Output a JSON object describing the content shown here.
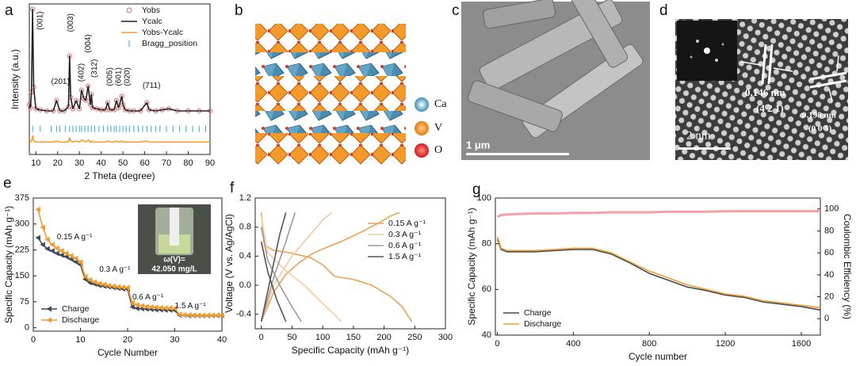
{
  "chart_data": [
    {
      "label": "a",
      "type": "line",
      "xlabel": "2 Theta (degree)",
      "ylabel": "Intensity (a.u.)",
      "xlim": [
        7,
        90
      ],
      "xticks": [
        10,
        20,
        30,
        40,
        50,
        60,
        70,
        80,
        90
      ],
      "ylim": [
        -40,
        105
      ],
      "legend": "upper-right",
      "x": [
        7,
        7.5,
        8,
        8.5,
        9,
        10,
        12,
        15,
        18,
        19.5,
        21,
        23,
        25,
        25.5,
        26,
        27,
        28.5,
        30,
        31,
        32,
        33,
        34,
        35,
        35.5,
        36,
        38,
        40,
        42,
        43,
        44,
        46,
        47,
        48,
        49.5,
        50,
        51,
        53,
        55,
        58,
        61,
        62,
        65,
        68,
        71,
        75,
        80,
        85,
        90
      ],
      "series": [
        {
          "name": "Yobs",
          "color": "#e06a6a",
          "style": "circles",
          "values": [
            8,
            5,
            20,
            100,
            25,
            4,
            3,
            2,
            2,
            12,
            2,
            2,
            6,
            55,
            15,
            4,
            12,
            4,
            22,
            14,
            12,
            26,
            8,
            18,
            5,
            4,
            3,
            3,
            10,
            3,
            3,
            12,
            5,
            16,
            8,
            3,
            2,
            2,
            2,
            10,
            3,
            2,
            3,
            4,
            2,
            2,
            2,
            2
          ]
        },
        {
          "name": "Ycalc",
          "color": "#222222",
          "style": "line",
          "values": [
            8,
            5,
            20,
            100,
            25,
            4,
            3,
            2,
            2,
            12,
            2,
            2,
            6,
            55,
            15,
            4,
            12,
            4,
            22,
            14,
            12,
            26,
            8,
            18,
            5,
            4,
            3,
            3,
            10,
            3,
            3,
            12,
            5,
            16,
            8,
            3,
            2,
            2,
            2,
            10,
            3,
            2,
            3,
            4,
            2,
            2,
            2,
            2
          ]
        },
        {
          "name": "Yobs-Ycalc",
          "color": "#f0a030",
          "style": "line",
          "values": [
            -28,
            -28,
            -27,
            -22,
            -27,
            -28,
            -28,
            -28,
            -28,
            -27,
            -28,
            -28,
            -28,
            -24,
            -27,
            -28,
            -27,
            -28,
            -26,
            -27,
            -28,
            -26,
            -28,
            -27,
            -28,
            -28,
            -28,
            -28,
            -27,
            -28,
            -28,
            -27,
            -28,
            -27,
            -28,
            -28,
            -28,
            -28,
            -28,
            -27,
            -28,
            -28,
            -28,
            -28,
            -28,
            -28,
            -28,
            -28
          ]
        },
        {
          "name": "Bragg_position",
          "color": "#2aa8e0",
          "style": "ticks",
          "x": [
            8.5,
            12,
            17,
            19.5,
            21,
            23.5,
            25.5,
            27,
            28.5,
            30,
            31,
            32.5,
            34,
            35.5,
            37,
            39,
            41,
            43,
            44.5,
            46,
            47,
            48.5,
            50,
            51.5,
            53,
            55,
            57,
            59,
            61,
            63,
            65,
            67,
            70,
            73,
            76,
            79,
            82,
            85,
            88
          ]
        }
      ],
      "annotations": [
        {
          "text": "(001)",
          "x": 12,
          "y": 80,
          "rotation": -90
        },
        {
          "text": "(201)",
          "x": 17,
          "y": 30
        },
        {
          "text": "(003)",
          "x": 26,
          "y": 78,
          "rotation": -90
        },
        {
          "text": "(004)",
          "x": 34,
          "y": 58,
          "rotation": -90
        },
        {
          "text": "(402)",
          "x": 31,
          "y": 30,
          "rotation": -90
        },
        {
          "text": "(312)",
          "x": 37,
          "y": 34,
          "rotation": -90
        },
        {
          "text": "(005)",
          "x": 44,
          "y": 26,
          "rotation": -90
        },
        {
          "text": "(601)",
          "x": 48,
          "y": 26,
          "rotation": -90
        },
        {
          "text": "(020)",
          "x": 52,
          "y": 26,
          "rotation": -90
        },
        {
          "text": "(711)",
          "x": 59,
          "y": 26
        }
      ]
    },
    {
      "label": "e",
      "type": "line",
      "xlabel": "Cycle Number",
      "ylabel": "Specific Capacity (mAh g⁻¹)",
      "xlim": [
        0,
        40
      ],
      "xticks": [
        0,
        10,
        20,
        30,
        40
      ],
      "ylim": [
        -10,
        375
      ],
      "yticks": [
        0,
        75,
        150,
        225,
        300,
        375
      ],
      "legend": "lower-left",
      "x": [
        1,
        2,
        3,
        4,
        5,
        6,
        7,
        8,
        9,
        10,
        11,
        12,
        13,
        14,
        15,
        16,
        17,
        18,
        19,
        20,
        21,
        22,
        23,
        24,
        25,
        26,
        27,
        28,
        29,
        30,
        31,
        32,
        33,
        34,
        35,
        36,
        37,
        38,
        39,
        40
      ],
      "series": [
        {
          "name": "Charge",
          "color": "#3d4a57",
          "style": "line",
          "marker": "triangle",
          "values": [
            260,
            240,
            228,
            222,
            215,
            210,
            205,
            198,
            190,
            182,
            140,
            130,
            126,
            122,
            120,
            118,
            116,
            114,
            112,
            111,
            60,
            56,
            55,
            54,
            53,
            52,
            52,
            51,
            51,
            50,
            36,
            36,
            35,
            35,
            35,
            35,
            35,
            35,
            35,
            35
          ]
        },
        {
          "name": "Discharge",
          "color": "#f39a2b",
          "style": "line",
          "marker": "triangle",
          "values": [
            342,
            290,
            255,
            240,
            230,
            222,
            215,
            208,
            200,
            190,
            148,
            138,
            132,
            128,
            125,
            122,
            120,
            118,
            117,
            116,
            72,
            66,
            63,
            61,
            60,
            59,
            58,
            57,
            57,
            56,
            38,
            37,
            37,
            36,
            36,
            36,
            36,
            36,
            36,
            36
          ]
        }
      ],
      "annotations": [
        {
          "text": "0.15 A g⁻¹",
          "x": 5,
          "y": 262
        },
        {
          "text": "0.3 A g⁻¹",
          "x": 14,
          "y": 168
        },
        {
          "text": "0.6 A g⁻¹",
          "x": 21,
          "y": 88
        },
        {
          "text": "1.5 A g⁻¹",
          "x": 30,
          "y": 62
        }
      ],
      "inset_text": [
        "ω(V)=",
        "42.050 mg/L"
      ]
    },
    {
      "label": "f",
      "type": "line",
      "xlabel": "Specific Capacity (mAh g⁻¹)",
      "ylabel": "Voltage (V vs. Ag/AgCl)",
      "xlim": [
        -10,
        300
      ],
      "xticks": [
        0,
        50,
        100,
        150,
        200,
        250,
        300
      ],
      "ylim": [
        -0.6,
        1.2
      ],
      "yticks": [
        -0.4,
        {
          "value": 0,
          "label": "0.0"
        },
        0.4,
        0.8,
        1.2
      ],
      "legend": "right",
      "series": [
        {
          "name": "0.15 A g⁻¹",
          "color": "#f0a050",
          "style": "line",
          "x": [
            0,
            5,
            20,
            50,
            80,
            100,
            120,
            150,
            180,
            210,
            230,
            245,
            null,
            0,
            20,
            40,
            60,
            80,
            100,
            130,
            160,
            190,
            210,
            225
          ],
          "values": [
            1.0,
            0.55,
            0.48,
            0.44,
            0.38,
            0.28,
            0.12,
            0.08,
            0.0,
            -0.15,
            -0.3,
            -0.5,
            null,
            -0.5,
            -0.1,
            0.15,
            0.3,
            0.42,
            0.5,
            0.6,
            0.72,
            0.85,
            0.95,
            1.0
          ]
        },
        {
          "name": "0.3 A g⁻¹",
          "color": "#f8c8a0",
          "style": "line",
          "x": [
            0,
            10,
            40,
            70,
            100,
            130,
            null,
            0,
            20,
            50,
            80,
            100,
            115
          ],
          "values": [
            0.95,
            0.45,
            0.2,
            0.0,
            -0.25,
            -0.5,
            null,
            -0.5,
            0.0,
            0.4,
            0.7,
            0.9,
            1.0
          ]
        },
        {
          "name": "0.6 A g⁻¹",
          "color": "#9a9a9a",
          "style": "line",
          "x": [
            0,
            10,
            30,
            50,
            65,
            null,
            0,
            20,
            40,
            55
          ],
          "values": [
            0.8,
            0.35,
            0.0,
            -0.3,
            -0.5,
            null,
            -0.5,
            0.1,
            0.6,
            1.0
          ]
        },
        {
          "name": "1.5 A g⁻¹",
          "color": "#555555",
          "style": "line",
          "x": [
            0,
            10,
            25,
            40,
            null,
            0,
            15,
            30,
            40
          ],
          "values": [
            0.6,
            0.2,
            -0.2,
            -0.5,
            null,
            -0.5,
            0.1,
            0.7,
            1.0
          ]
        }
      ]
    },
    {
      "label": "g",
      "type": "line",
      "xlabel": "Cycle number",
      "ylabel": "Specific Capacity (mAh g⁻¹)",
      "y2label": "Coulombic Efficiency (%)",
      "xlim": [
        -10,
        1700
      ],
      "xticks": [
        0,
        400,
        800,
        1200,
        1600
      ],
      "ylim": [
        40,
        100
      ],
      "yticks": [
        40,
        60,
        80,
        100
      ],
      "y2lim": [
        -15,
        110
      ],
      "y2ticks": [
        0,
        20,
        40,
        60,
        80,
        100
      ],
      "legend": "lower-left",
      "x": [
        1,
        20,
        50,
        100,
        200,
        300,
        400,
        500,
        600,
        700,
        800,
        900,
        1000,
        1100,
        1200,
        1300,
        1400,
        1500,
        1600,
        1700
      ],
      "series": [
        {
          "color": "#f4a0a8",
          "style": "line",
          "axis": "y2",
          "values": [
            93,
            94.5,
            95,
            95.5,
            96,
            96,
            96.5,
            96.5,
            97,
            97,
            97,
            97.5,
            97.5,
            97.5,
            98,
            98,
            98,
            98,
            98,
            98
          ]
        },
        {
          "name": "Charge",
          "color": "#3d4a57",
          "style": "line",
          "values": [
            82,
            77.5,
            76.5,
            76.5,
            76.5,
            77,
            77.5,
            77.5,
            75.5,
            71.5,
            67,
            64,
            61,
            59.5,
            57.5,
            56.5,
            54.5,
            53.5,
            52.5,
            51
          ]
        },
        {
          "name": "Discharge",
          "color": "#f39a2b",
          "style": "line",
          "values": [
            83,
            78,
            77,
            77,
            77,
            77.5,
            78,
            78,
            76,
            72,
            68,
            65,
            62,
            60,
            58,
            57,
            55,
            54,
            53,
            52
          ]
        }
      ]
    }
  ],
  "panels": {
    "b": {
      "label": "b",
      "legend": [
        "Ca",
        "V",
        "O"
      ]
    },
    "c": {
      "label": "c",
      "scale_bar": "1 μm"
    },
    "d": {
      "label": "d",
      "scale_bar": "2 nm",
      "spacing_1": "0.146 nm",
      "plane_1": "(4 2 1)",
      "spacing_2": "0.198 nm",
      "plane_2": "(0 0 5)"
    }
  }
}
